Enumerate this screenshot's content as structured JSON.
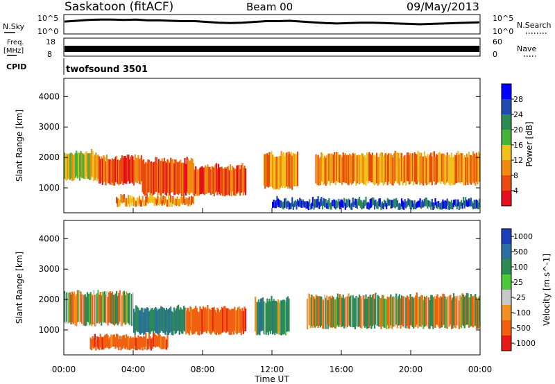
{
  "header": {
    "title": "Saskatoon (fitACF)",
    "beam": "Beam 00",
    "date": "09/May/2013"
  },
  "chart_data": [
    {
      "type": "line",
      "panel": "noise",
      "left_label": "N.Sky",
      "right_label": "N.Search",
      "left_ticks": [
        "10^5",
        "10^0"
      ],
      "right_ticks": [
        "10^5",
        "10^0"
      ],
      "scale": "log",
      "ylim_exponent": [
        0,
        5
      ],
      "series": [
        {
          "values": [
            3.2,
            3.4,
            3.6,
            3.7,
            3.7,
            3.6,
            3.7,
            3.5,
            3.5,
            3.4,
            3.3,
            3.3,
            3.1,
            2.9,
            2.8,
            2.9,
            3.1,
            3.3,
            3.3,
            3.4,
            3.2,
            3.0,
            2.8,
            2.7,
            2.8,
            2.9,
            2.9,
            2.8,
            2.7,
            2.6,
            2.5,
            2.6,
            2.7,
            2.8,
            2.9,
            3.0
          ]
        }
      ]
    },
    {
      "type": "line",
      "panel": "frequency",
      "left_label_line1": "Freq.",
      "left_label_line2": "[MHz]",
      "right_label": "Nave",
      "left_ticks": [
        "18",
        "8"
      ],
      "right_ticks": [
        "60",
        "0"
      ],
      "values_mhz": [
        12.6,
        12.8
      ]
    },
    {
      "type": "table",
      "panel": "cpid",
      "label": "CPID",
      "program": "twofsound 3501"
    },
    {
      "type": "heatmap",
      "panel": "power",
      "ylabel": "Slant Range [km]",
      "yticks": [
        1000,
        2000,
        3000,
        4000
      ],
      "ylim": [
        180,
        4600
      ],
      "colorbar_label": "Power [dB]",
      "colorbar_ticks": [
        "4",
        "8",
        "12",
        "16",
        "20",
        "24",
        "28"
      ],
      "colors": [
        "#0000ff",
        "#1e4bb0",
        "#2c8a55",
        "#45b23b",
        "#f0c01c",
        "#f18a10",
        "#e84a12",
        "#e40f1b"
      ],
      "bands": [
        {
          "t_start": 0.0,
          "t_end": 2.0,
          "r_low": 1300,
          "r_high": 2150,
          "level": 4
        },
        {
          "t_start": 2.0,
          "t_end": 4.5,
          "r_low": 1150,
          "r_high": 2000,
          "level": 6
        },
        {
          "t_start": 4.5,
          "t_end": 7.5,
          "r_low": 800,
          "r_high": 1900,
          "level": 6
        },
        {
          "t_start": 7.5,
          "t_end": 10.5,
          "r_low": 800,
          "r_high": 1700,
          "level": 6
        },
        {
          "t_start": 11.5,
          "t_end": 13.5,
          "r_low": 1000,
          "r_high": 2100,
          "level": 5
        },
        {
          "t_start": 14.5,
          "t_end": 24.0,
          "r_low": 1150,
          "r_high": 2100,
          "level": 5
        },
        {
          "t_start": 3.0,
          "t_end": 7.5,
          "r_low": 450,
          "r_high": 700,
          "level": 5
        },
        {
          "t_start": 12.0,
          "t_end": 24.0,
          "r_low": 350,
          "r_high": 600,
          "level": 1
        }
      ]
    },
    {
      "type": "heatmap",
      "panel": "velocity",
      "ylabel": "Slant Range [km]",
      "yticks": [
        1000,
        2000,
        3000,
        4000
      ],
      "ylim": [
        180,
        4600
      ],
      "xlabel": "Time UT",
      "xticks": [
        "00:00",
        "04:00",
        "08:00",
        "12:00",
        "16:00",
        "20:00",
        "00:00"
      ],
      "xlim_hours": [
        0,
        24
      ],
      "colorbar_label": "Velocity [m s^-1]",
      "colorbar_ticks": [
        "1000",
        "500",
        "100",
        "25",
        "-25",
        "-100",
        "-500",
        "-1000"
      ],
      "colors": [
        "#1c3fb8",
        "#2a6fa0",
        "#2c8a55",
        "#4fc83a",
        "#c8c8c8",
        "#f09020",
        "#f06010",
        "#e81818"
      ],
      "bands": [
        {
          "t_start": 0.0,
          "t_end": 4.0,
          "r_low": 1200,
          "r_high": 2200,
          "value": 0
        },
        {
          "t_start": 4.0,
          "t_end": 7.0,
          "r_low": 900,
          "r_high": 1700,
          "value": 300
        },
        {
          "t_start": 7.0,
          "t_end": 10.5,
          "r_low": 900,
          "r_high": 1700,
          "value": -300
        },
        {
          "t_start": 11.0,
          "t_end": 13.0,
          "r_low": 900,
          "r_high": 2000,
          "value": 150
        },
        {
          "t_start": 14.0,
          "t_end": 24.0,
          "r_low": 1100,
          "r_high": 2100,
          "value": 0
        },
        {
          "t_start": 1.5,
          "t_end": 6.0,
          "r_low": 400,
          "r_high": 800,
          "value": -300
        }
      ]
    }
  ]
}
